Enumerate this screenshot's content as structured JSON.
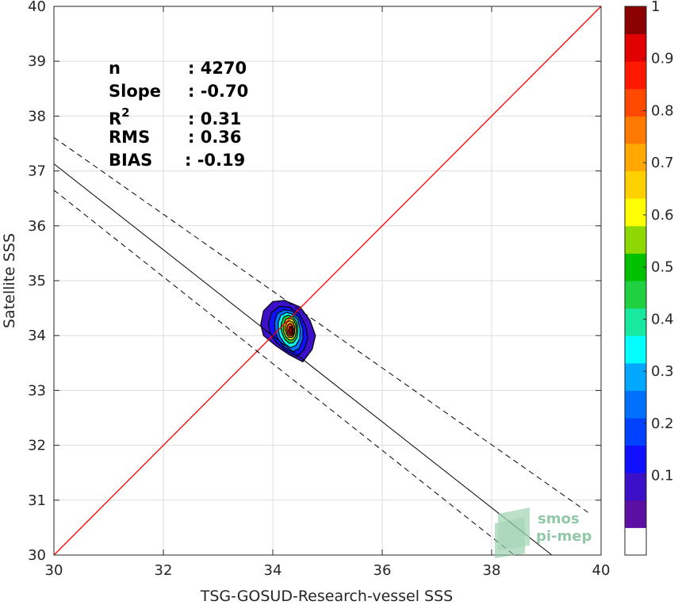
{
  "chart_data": {
    "type": "scatter",
    "subtype": "density-contour",
    "xlabel": "TSG-GOSUD-Research-vessel SSS",
    "ylabel": "Satellite SSS",
    "xlim": [
      30,
      40
    ],
    "ylim": [
      30,
      40
    ],
    "xticks": [
      "30",
      "32",
      "34",
      "36",
      "38",
      "40"
    ],
    "yticks": [
      "30",
      "31",
      "32",
      "33",
      "34",
      "35",
      "36",
      "37",
      "38",
      "39",
      "40"
    ],
    "grid": true,
    "identity_line": {
      "color": "#ff0000",
      "from": [
        30,
        30
      ],
      "to": [
        40,
        40
      ]
    },
    "regression": {
      "slope": -0.7,
      "x_at_y30": 39.1,
      "y_at_x30": 37.13,
      "color": "#000000"
    },
    "rms_band": {
      "offset": 0.48,
      "style": "dashed"
    },
    "density_center": {
      "x": 34.35,
      "y": 34.05
    },
    "stats": [
      {
        "label": "n",
        "value": ": 4270"
      },
      {
        "label": "Slope",
        "value": ": -0.70"
      },
      {
        "label": "R",
        "sup": "2",
        "value": ": 0.31"
      },
      {
        "label": "RMS",
        "value": ": 0.36"
      },
      {
        "label": "BIAS",
        "value": ": -0.19"
      }
    ],
    "colorbar": {
      "range": [
        0,
        1
      ],
      "ticks": [
        "0.1",
        "0.2",
        "0.3",
        "0.4",
        "0.5",
        "0.6",
        "0.7",
        "0.8",
        "0.9",
        "1"
      ],
      "colors": [
        "#ffffff",
        "#5b0fa3",
        "#3b10c6",
        "#1010ff",
        "#0040ff",
        "#0070ff",
        "#00a8ff",
        "#00ffff",
        "#18e8a0",
        "#20d040",
        "#00c000",
        "#8cd800",
        "#ffff00",
        "#ffd000",
        "#ffa800",
        "#ff7a00",
        "#ff4800",
        "#ff1800",
        "#e00000",
        "#8b0000"
      ]
    },
    "contours": [
      {
        "level": 0.05,
        "color": "#3b10c6",
        "pts": [
          [
            33.78,
            34.2
          ],
          [
            33.83,
            34.45
          ],
          [
            34.0,
            34.62
          ],
          [
            34.22,
            34.64
          ],
          [
            34.5,
            34.52
          ],
          [
            34.68,
            34.28
          ],
          [
            34.78,
            34.0
          ],
          [
            34.72,
            33.75
          ],
          [
            34.55,
            33.52
          ],
          [
            34.3,
            33.65
          ],
          [
            34.05,
            33.82
          ],
          [
            33.83,
            34.0
          ]
        ]
      },
      {
        "level": 0.1,
        "color": "#1010ff",
        "pts": [
          [
            33.92,
            34.22
          ],
          [
            33.98,
            34.42
          ],
          [
            34.12,
            34.53
          ],
          [
            34.3,
            34.52
          ],
          [
            34.48,
            34.4
          ],
          [
            34.6,
            34.18
          ],
          [
            34.64,
            33.95
          ],
          [
            34.57,
            33.74
          ],
          [
            34.44,
            33.62
          ],
          [
            34.25,
            33.72
          ],
          [
            34.06,
            33.88
          ],
          [
            33.95,
            34.05
          ]
        ]
      },
      {
        "level": 0.2,
        "color": "#0070ff",
        "pts": [
          [
            34.03,
            34.24
          ],
          [
            34.08,
            34.4
          ],
          [
            34.2,
            34.47
          ],
          [
            34.35,
            34.45
          ],
          [
            34.48,
            34.32
          ],
          [
            34.55,
            34.12
          ],
          [
            34.55,
            33.93
          ],
          [
            34.48,
            33.76
          ],
          [
            34.36,
            33.7
          ],
          [
            34.22,
            33.78
          ],
          [
            34.1,
            33.93
          ],
          [
            34.04,
            34.08
          ]
        ]
      },
      {
        "level": 0.4,
        "color": "#00ffff",
        "pts": [
          [
            34.1,
            34.24
          ],
          [
            34.15,
            34.37
          ],
          [
            34.25,
            34.42
          ],
          [
            34.36,
            34.39
          ],
          [
            34.46,
            34.28
          ],
          [
            34.5,
            34.1
          ],
          [
            34.49,
            33.94
          ],
          [
            34.42,
            33.82
          ],
          [
            34.32,
            33.78
          ],
          [
            34.22,
            33.85
          ],
          [
            34.13,
            33.98
          ],
          [
            34.1,
            34.1
          ]
        ]
      },
      {
        "level": 0.55,
        "color": "#20d040",
        "pts": [
          [
            34.16,
            34.23
          ],
          [
            34.2,
            34.34
          ],
          [
            34.28,
            34.37
          ],
          [
            34.37,
            34.34
          ],
          [
            34.44,
            34.24
          ],
          [
            34.46,
            34.09
          ],
          [
            34.44,
            33.96
          ],
          [
            34.38,
            33.87
          ],
          [
            34.3,
            33.86
          ],
          [
            34.22,
            33.93
          ],
          [
            34.17,
            34.04
          ],
          [
            34.15,
            34.14
          ]
        ]
      },
      {
        "level": 0.65,
        "color": "#ffff00",
        "pts": [
          [
            34.2,
            34.2
          ],
          [
            34.24,
            34.3
          ],
          [
            34.3,
            34.32
          ],
          [
            34.37,
            34.29
          ],
          [
            34.42,
            34.2
          ],
          [
            34.43,
            34.08
          ],
          [
            34.41,
            33.98
          ],
          [
            34.36,
            33.92
          ],
          [
            34.3,
            33.92
          ],
          [
            34.24,
            33.98
          ],
          [
            34.2,
            34.07
          ]
        ]
      },
      {
        "level": 0.75,
        "color": "#ffa800",
        "pts": [
          [
            34.23,
            34.17
          ],
          [
            34.26,
            34.25
          ],
          [
            34.31,
            34.27
          ],
          [
            34.37,
            34.24
          ],
          [
            34.4,
            34.16
          ],
          [
            34.4,
            34.06
          ],
          [
            34.38,
            33.99
          ],
          [
            34.34,
            33.96
          ],
          [
            34.29,
            33.97
          ],
          [
            34.25,
            34.03
          ],
          [
            34.23,
            34.1
          ]
        ]
      },
      {
        "level": 0.85,
        "color": "#ff4800",
        "pts": [
          [
            34.26,
            34.14
          ],
          [
            34.28,
            34.2
          ],
          [
            34.32,
            34.22
          ],
          [
            34.36,
            34.19
          ],
          [
            34.38,
            34.12
          ],
          [
            34.38,
            34.05
          ],
          [
            34.36,
            34.0
          ],
          [
            34.32,
            33.99
          ],
          [
            34.28,
            34.02
          ],
          [
            34.26,
            34.08
          ]
        ]
      },
      {
        "level": 0.95,
        "color": "#8b0000",
        "pts": [
          [
            34.29,
            34.1
          ],
          [
            34.31,
            34.16
          ],
          [
            34.34,
            34.17
          ],
          [
            34.36,
            34.12
          ],
          [
            34.36,
            34.05
          ],
          [
            34.34,
            34.02
          ],
          [
            34.31,
            34.03
          ],
          [
            34.29,
            34.07
          ]
        ]
      }
    ]
  },
  "watermark": {
    "line1": "smos",
    "line2": "pi-mep",
    "color": "#7fbf9a"
  }
}
